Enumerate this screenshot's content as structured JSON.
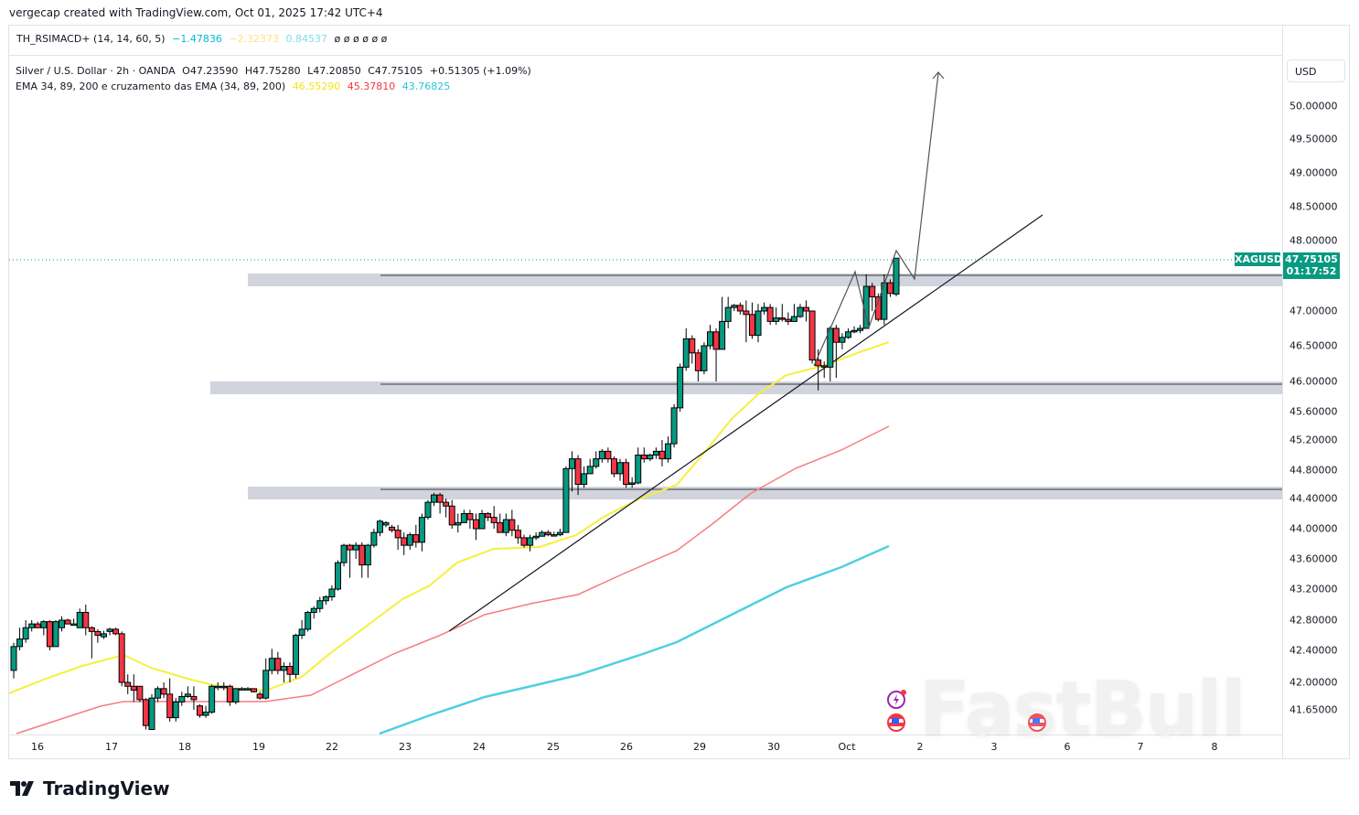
{
  "credit": "vergecap created with TradingView.com, Oct 01, 2025 17:42 UTC+4",
  "indicator_pane": {
    "name": "TH_RSIMACD+ (14, 14, 60, 5)",
    "values": [
      {
        "text": "−1.47836",
        "color": "#00bcd4"
      },
      {
        "text": "−2.32373",
        "color": "#ffe082"
      },
      {
        "text": "0.84537",
        "color": "#80deea"
      },
      {
        "text": "ø ø ø ø ø ø",
        "color": "#131722"
      }
    ]
  },
  "main_legend": {
    "symbol_line": "Silver / U.S. Dollar · 2h · OANDA",
    "open": "O47.23590",
    "high": "H47.75280",
    "low": "L47.20850",
    "close": "C47.75105",
    "change": "+0.51305 (+1.09%)",
    "ema_label": "EMA 34, 89, 200 e cruzamento das EMA (34, 89, 200)",
    "ema_values": [
      {
        "text": "46.55290",
        "color": "#f5e21b"
      },
      {
        "text": "45.37810",
        "color": "#f23645"
      },
      {
        "text": "43.76825",
        "color": "#26c6da"
      }
    ]
  },
  "price_axis": {
    "currency_button": "USD",
    "ticks": [
      "50.00000",
      "49.50000",
      "49.00000",
      "48.50000",
      "48.00000",
      "47.00000",
      "46.50000",
      "46.00000",
      "45.60000",
      "45.20000",
      "44.80000",
      "44.40000",
      "44.00000",
      "43.60000",
      "43.20000",
      "42.80000",
      "42.40000",
      "42.00000",
      "41.65000"
    ],
    "last_price": "47.75105",
    "countdown": "01:17:52",
    "symbol_badge": "XAGUSD"
  },
  "time_axis": {
    "labels": [
      "16",
      "17",
      "18",
      "19",
      "22",
      "23",
      "24",
      "25",
      "26",
      "29",
      "30",
      "Oct",
      "2",
      "3",
      "6",
      "7",
      "8"
    ]
  },
  "brand": "TradingView",
  "watermark": "FastBull",
  "colors": {
    "up": "#089981",
    "down": "#f23645",
    "ema34": "#f5f03b",
    "ema89": "#f77c80",
    "ema200": "#4dd0e1",
    "zone": "#d1d4dc"
  },
  "chart_data": {
    "type": "candlestick",
    "title": "Silver / U.S. Dollar · 2h · OANDA",
    "symbol": "XAGUSD",
    "timeframe": "2h",
    "ylabel": "USD",
    "ylim": [
      41.5,
      50.5
    ],
    "x_labels": [
      "16",
      "17",
      "18",
      "19",
      "22",
      "23",
      "24",
      "25",
      "26",
      "29",
      "30",
      "Oct",
      "2",
      "3",
      "6",
      "7",
      "8"
    ],
    "ohlc_latest": {
      "open": 47.2359,
      "high": 47.7528,
      "low": 47.2085,
      "close": 47.75105,
      "change": 0.51305,
      "change_pct": 1.09
    },
    "ema": {
      "ema34": 46.5529,
      "ema89": 45.3781,
      "ema200": 43.76825
    },
    "indicator": {
      "name": "TH_RSIMACD+ (14, 14, 60, 5)",
      "values": [
        -1.47836,
        -2.32373,
        0.84537
      ]
    },
    "support_resistance_zones": [
      47.45,
      45.95,
      44.45
    ],
    "trendline": {
      "from": {
        "date": "23",
        "price": 42.75
      },
      "to": {
        "date": "2",
        "price": 48.35
      }
    },
    "projection_target": 50.35,
    "candles": [
      [
        42.15,
        42.45,
        42.05,
        42.5
      ],
      [
        42.45,
        42.55,
        42.4,
        42.7
      ],
      [
        42.55,
        42.7,
        42.5,
        42.8
      ],
      [
        42.7,
        42.75,
        42.65,
        42.8
      ],
      [
        42.75,
        42.7,
        42.7,
        42.78
      ],
      [
        42.7,
        42.78,
        42.6,
        42.8
      ],
      [
        42.78,
        42.45,
        42.4,
        42.8
      ],
      [
        42.45,
        42.78,
        42.45,
        42.8
      ],
      [
        42.7,
        42.8,
        42.65,
        42.85
      ],
      [
        42.8,
        42.75,
        42.75,
        42.82
      ],
      [
        42.75,
        42.75,
        42.75,
        42.82
      ],
      [
        42.7,
        42.9,
        42.7,
        42.95
      ],
      [
        42.9,
        42.7,
        42.6,
        43.0
      ],
      [
        42.7,
        42.65,
        42.3,
        42.72
      ],
      [
        42.65,
        42.6,
        42.5,
        42.68
      ],
      [
        42.58,
        42.62,
        42.55,
        42.66
      ],
      [
        42.65,
        42.68,
        42.6,
        42.7
      ],
      [
        42.68,
        42.62,
        42.6,
        42.7
      ],
      [
        42.62,
        42.0,
        41.95,
        42.65
      ],
      [
        42.0,
        41.95,
        41.85,
        42.1
      ],
      [
        41.95,
        41.9,
        41.75,
        42.1
      ],
      [
        41.95,
        41.78,
        41.75,
        41.95
      ],
      [
        41.78,
        41.45,
        41.4,
        41.8
      ],
      [
        41.4,
        41.8,
        41.4,
        41.85
      ],
      [
        41.8,
        41.92,
        41.75,
        41.95
      ],
      [
        41.92,
        41.85,
        41.8,
        42.0
      ],
      [
        41.85,
        41.55,
        41.5,
        42.05
      ],
      [
        41.55,
        41.75,
        41.5,
        41.8
      ],
      [
        41.75,
        41.82,
        41.7,
        41.88
      ],
      [
        41.82,
        41.85,
        41.8,
        41.95
      ],
      [
        41.82,
        41.78,
        41.65,
        41.95
      ],
      [
        41.7,
        41.58,
        41.55,
        41.72
      ],
      [
        41.58,
        41.62,
        41.55,
        41.7
      ],
      [
        41.62,
        41.95,
        41.6,
        41.97
      ],
      [
        41.95,
        41.95,
        41.9,
        42.0
      ],
      [
        41.95,
        41.95,
        41.9,
        42.0
      ],
      [
        41.95,
        41.75,
        41.7,
        41.97
      ],
      [
        41.75,
        41.92,
        41.72,
        41.92
      ],
      [
        41.92,
        41.92,
        41.9,
        41.94
      ],
      [
        41.92,
        41.92,
        41.9,
        41.94
      ],
      [
        41.92,
        41.88,
        41.87,
        41.92
      ],
      [
        41.85,
        41.8,
        41.78,
        41.88
      ],
      [
        41.8,
        42.15,
        41.78,
        42.3
      ],
      [
        42.15,
        42.3,
        42.1,
        42.42
      ],
      [
        42.3,
        42.15,
        42.1,
        42.38
      ],
      [
        42.15,
        42.2,
        42.0,
        42.25
      ],
      [
        42.2,
        42.1,
        42.0,
        42.25
      ],
      [
        42.1,
        42.6,
        42.05,
        42.62
      ],
      [
        42.6,
        42.68,
        42.55,
        42.8
      ],
      [
        42.68,
        42.9,
        42.65,
        42.92
      ],
      [
        42.9,
        42.95,
        42.82,
        42.98
      ],
      [
        42.95,
        43.05,
        42.9,
        43.1
      ],
      [
        43.05,
        43.1,
        43.0,
        43.12
      ],
      [
        43.1,
        43.2,
        43.05,
        43.25
      ],
      [
        43.2,
        43.55,
        43.18,
        43.58
      ],
      [
        43.55,
        43.78,
        43.5,
        43.8
      ],
      [
        43.78,
        43.72,
        43.35,
        43.8
      ],
      [
        43.72,
        43.78,
        43.6,
        43.82
      ],
      [
        43.78,
        43.52,
        43.35,
        43.82
      ],
      [
        43.52,
        43.78,
        43.35,
        43.8
      ],
      [
        43.78,
        43.95,
        43.75,
        44.0
      ],
      [
        43.95,
        44.1,
        43.9,
        44.12
      ],
      [
        44.05,
        44.08,
        44.02,
        44.1
      ],
      [
        44.02,
        43.98,
        43.95,
        44.05
      ],
      [
        43.98,
        43.88,
        43.72,
        44.05
      ],
      [
        43.88,
        43.78,
        43.65,
        43.95
      ],
      [
        43.78,
        43.92,
        43.72,
        43.95
      ],
      [
        43.92,
        43.82,
        43.75,
        44.05
      ],
      [
        43.82,
        44.15,
        43.7,
        44.2
      ],
      [
        44.15,
        44.35,
        44.12,
        44.38
      ],
      [
        44.35,
        44.45,
        44.3,
        44.48
      ],
      [
        44.45,
        44.35,
        44.2,
        44.48
      ],
      [
        44.35,
        44.3,
        44.15,
        44.4
      ],
      [
        44.3,
        44.05,
        44.0,
        44.38
      ],
      [
        44.05,
        44.08,
        43.95,
        44.2
      ],
      [
        44.08,
        44.2,
        44.08,
        44.25
      ],
      [
        44.2,
        44.12,
        44.0,
        44.25
      ],
      [
        44.12,
        44.0,
        43.85,
        44.2
      ],
      [
        44.0,
        44.2,
        44.0,
        44.25
      ],
      [
        44.2,
        44.15,
        44.1,
        44.22
      ],
      [
        44.15,
        44.08,
        44.0,
        44.3
      ],
      [
        44.08,
        43.95,
        43.95,
        44.2
      ],
      [
        43.95,
        44.12,
        43.9,
        44.2
      ],
      [
        44.12,
        43.98,
        43.9,
        44.25
      ],
      [
        43.98,
        43.88,
        43.8,
        44.05
      ],
      [
        43.88,
        43.78,
        43.75,
        43.92
      ],
      [
        43.78,
        43.88,
        43.7,
        43.92
      ],
      [
        43.88,
        43.9,
        43.85,
        43.95
      ],
      [
        43.9,
        43.95,
        43.9,
        43.98
      ],
      [
        43.95,
        43.92,
        43.9,
        43.98
      ],
      [
        43.92,
        43.92,
        43.9,
        43.96
      ],
      [
        43.92,
        43.95,
        43.9,
        44.0
      ],
      [
        43.95,
        44.82,
        43.95,
        44.85
      ],
      [
        44.82,
        44.95,
        44.5,
        45.05
      ],
      [
        44.95,
        44.6,
        44.45,
        45.0
      ],
      [
        44.6,
        44.75,
        44.55,
        44.85
      ],
      [
        44.75,
        44.85,
        44.75,
        44.95
      ],
      [
        44.85,
        44.95,
        44.82,
        45.05
      ],
      [
        44.95,
        45.05,
        44.9,
        45.08
      ],
      [
        45.05,
        44.95,
        44.9,
        45.1
      ],
      [
        44.95,
        44.75,
        44.7,
        44.98
      ],
      [
        44.75,
        44.9,
        44.65,
        44.95
      ],
      [
        44.9,
        44.6,
        44.55,
        44.95
      ],
      [
        44.6,
        44.62,
        44.55,
        44.7
      ],
      [
        44.62,
        45.0,
        44.6,
        45.1
      ],
      [
        45.0,
        44.95,
        44.9,
        45.1
      ],
      [
        44.95,
        45.0,
        44.92,
        45.02
      ],
      [
        45.0,
        45.05,
        44.95,
        45.1
      ],
      [
        45.05,
        44.95,
        44.85,
        45.2
      ],
      [
        44.95,
        45.15,
        44.9,
        45.25
      ],
      [
        45.15,
        45.65,
        45.1,
        45.7
      ],
      [
        45.65,
        46.2,
        45.6,
        46.25
      ],
      [
        46.2,
        46.6,
        46.15,
        46.75
      ],
      [
        46.6,
        46.4,
        46.25,
        46.65
      ],
      [
        46.4,
        46.15,
        46.0,
        46.45
      ],
      [
        46.15,
        46.5,
        46.1,
        46.55
      ],
      [
        46.5,
        46.7,
        46.45,
        46.8
      ],
      [
        46.7,
        46.45,
        46.0,
        46.75
      ],
      [
        46.45,
        46.85,
        46.45,
        47.2
      ],
      [
        46.85,
        47.05,
        46.75,
        47.2
      ],
      [
        47.05,
        47.08,
        47.0,
        47.1
      ],
      [
        47.08,
        47.0,
        46.95,
        47.12
      ],
      [
        47.0,
        46.95,
        46.55,
        47.15
      ],
      [
        46.95,
        46.65,
        46.6,
        47.12
      ],
      [
        46.65,
        47.0,
        46.55,
        47.1
      ],
      [
        47.0,
        47.05,
        46.95,
        47.12
      ],
      [
        47.05,
        46.85,
        46.8,
        47.1
      ],
      [
        46.85,
        46.9,
        46.8,
        47.05
      ],
      [
        46.9,
        46.88,
        46.85,
        47.1
      ],
      [
        46.88,
        46.85,
        46.8,
        46.98
      ],
      [
        46.85,
        46.92,
        46.85,
        47.1
      ],
      [
        46.92,
        47.05,
        46.9,
        47.1
      ],
      [
        47.05,
        47.0,
        46.85,
        47.15
      ],
      [
        47.0,
        46.3,
        46.25,
        47.0
      ],
      [
        46.3,
        46.22,
        45.88,
        46.45
      ],
      [
        46.22,
        46.2,
        46.05,
        46.28
      ],
      [
        46.2,
        46.75,
        46.0,
        46.78
      ],
      [
        46.75,
        46.55,
        46.05,
        46.8
      ],
      [
        46.55,
        46.62,
        46.45,
        46.68
      ],
      [
        46.62,
        46.7,
        46.6,
        46.75
      ],
      [
        46.7,
        46.72,
        46.68,
        46.78
      ],
      [
        46.72,
        46.75,
        46.68,
        46.8
      ],
      [
        46.75,
        47.35,
        46.75,
        47.52
      ],
      [
        47.35,
        47.2,
        47.0,
        47.4
      ],
      [
        47.2,
        46.88,
        46.85,
        47.25
      ],
      [
        46.88,
        47.4,
        46.8,
        47.52
      ],
      [
        47.4,
        47.25,
        47.2,
        47.45
      ],
      [
        47.24,
        47.75,
        47.21,
        47.75
      ]
    ]
  }
}
